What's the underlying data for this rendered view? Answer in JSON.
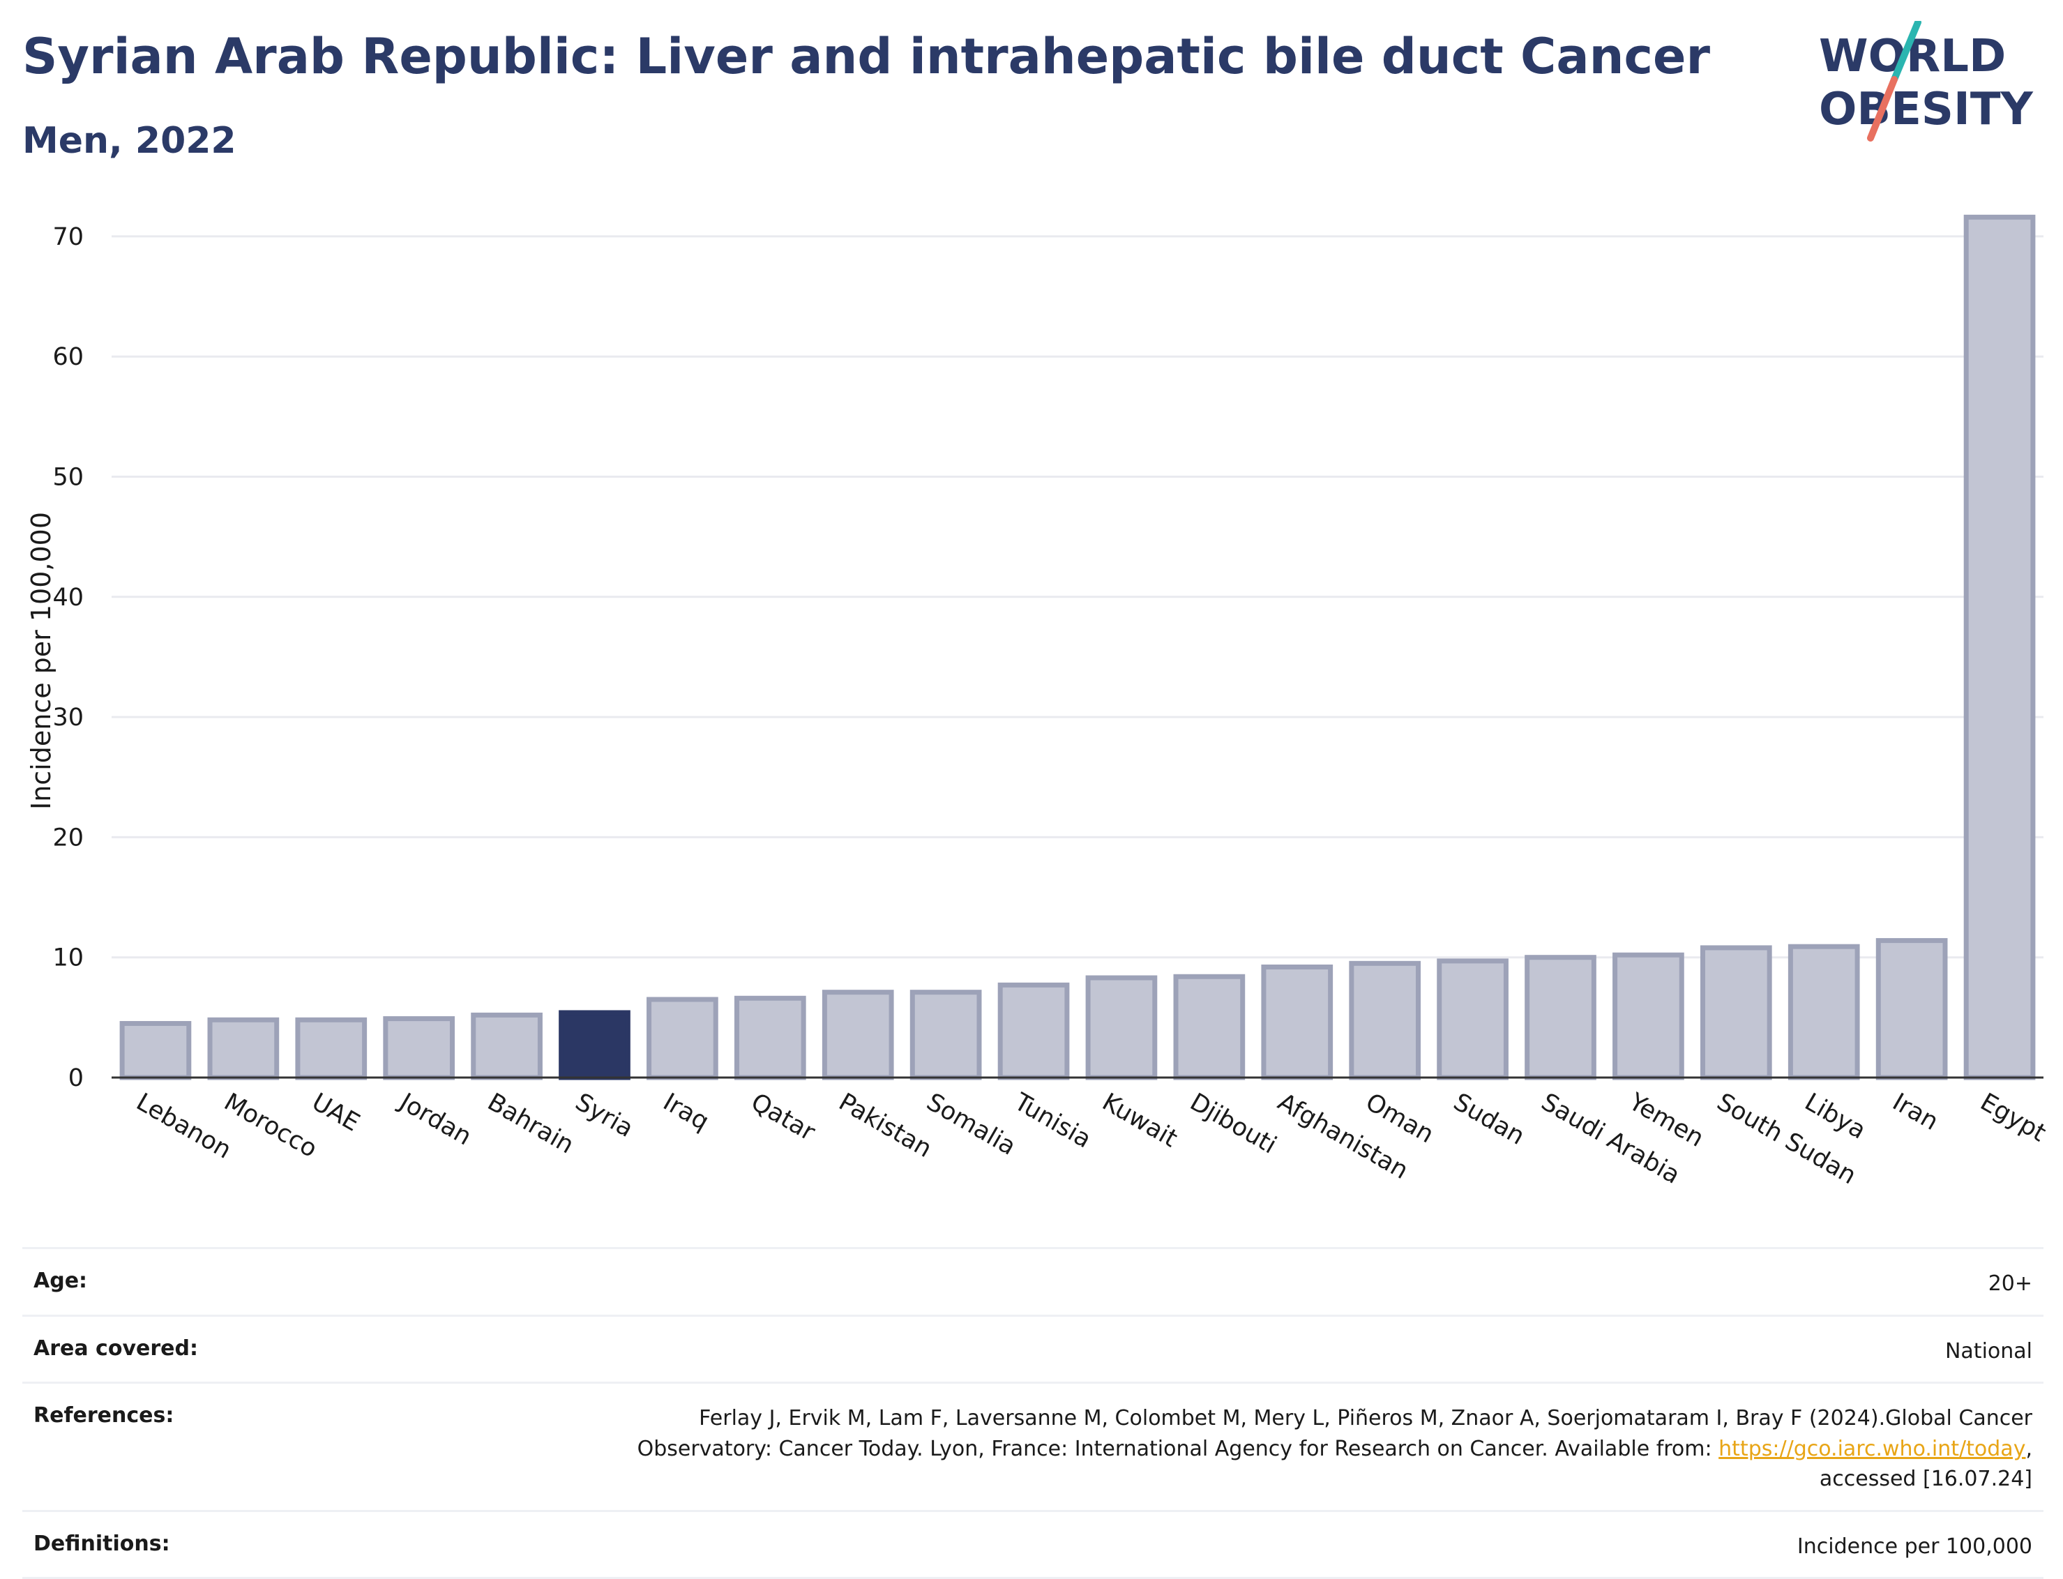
{
  "header": {
    "title": "Syrian Arab Republic: Liver and intrahepatic bile duct Cancer",
    "subtitle": "Men, 2022"
  },
  "logo": {
    "line1": "WORLD",
    "line2": "OBESITY",
    "accent_teal": "#2bb5b0",
    "accent_coral": "#e8705f"
  },
  "chart_data": {
    "type": "bar",
    "ylabel": "Incidence per 100,000",
    "ylim": [
      0,
      74
    ],
    "yticks": [
      0,
      10,
      20,
      30,
      40,
      50,
      60,
      70
    ],
    "grid": true,
    "categories": [
      "Lebanon",
      "Morocco",
      "UAE",
      "Jordan",
      "Bahrain",
      "Syria",
      "Iraq",
      "Qatar",
      "Pakistan",
      "Somalia",
      "Tunisia",
      "Kuwait",
      "Djibouti",
      "Afghanistan",
      "Oman",
      "Sudan",
      "Saudi Arabia",
      "Yemen",
      "South Sudan",
      "Libya",
      "Iran",
      "Egypt"
    ],
    "values": [
      4.5,
      4.8,
      4.8,
      4.9,
      5.2,
      5.4,
      6.5,
      6.6,
      7.1,
      7.1,
      7.7,
      8.3,
      8.4,
      9.2,
      9.5,
      9.7,
      10.0,
      10.2,
      10.8,
      10.9,
      11.4,
      71.6
    ],
    "highlight": "Syria",
    "colors": {
      "bar": "#c2c5d3",
      "bar_border": "#9da2b8",
      "highlight": "#2b3764"
    }
  },
  "info": {
    "age_label": "Age:",
    "age_value": "20+",
    "area_label": "Area covered:",
    "area_value": "National",
    "references_label": "References:",
    "references_line1": "Ferlay J, Ervik M, Lam F, Laversanne M, Colombet M, Mery L, Piñeros M, Znaor A, Soerjomataram I, Bray F (2024).Global Cancer",
    "references_line2_prefix": "Observatory: Cancer Today. Lyon, France: International Agency for Research on Cancer. Available from: ",
    "references_link": "https://gco.iarc.who.int/today",
    "references_line2_suffix": ",",
    "references_line3": "accessed [16.07.24]",
    "definitions_label": "Definitions:",
    "definitions_value": "Incidence per 100,000"
  }
}
